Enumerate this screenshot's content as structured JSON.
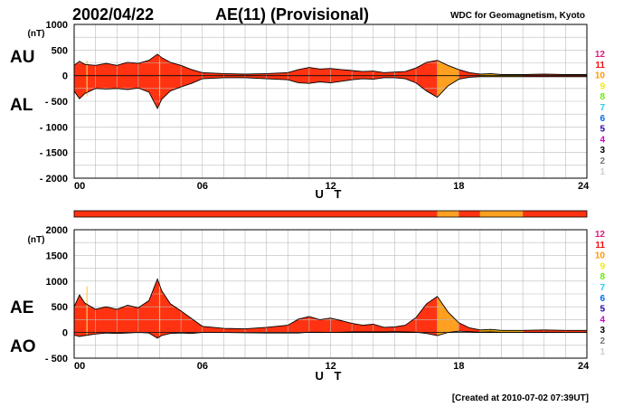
{
  "header": {
    "date": "2002/04/22",
    "title": "AE(11) (Provisional)",
    "source": "WDC for Geomagnetism, Kyoto"
  },
  "footer": {
    "created": "[Created at 2010-07-02 07:39UT]"
  },
  "colors": {
    "fill_main": "#ff3311",
    "fill_orange": "#ffa020",
    "fill_gold": "#e0a000",
    "grid": "#bbbbbb",
    "outline": "#000000"
  },
  "legend": {
    "levels": [
      {
        "label": "12",
        "color": "#e8177d"
      },
      {
        "label": "11",
        "color": "#ee1111"
      },
      {
        "label": "10",
        "color": "#ff9900"
      },
      {
        "label": "9",
        "color": "#eeee00"
      },
      {
        "label": "8",
        "color": "#66ee00"
      },
      {
        "label": "7",
        "color": "#22ccee"
      },
      {
        "label": "6",
        "color": "#0066ee"
      },
      {
        "label": "5",
        "color": "#2200aa"
      },
      {
        "label": "4",
        "color": "#cc00cc"
      },
      {
        "label": "3",
        "color": "#000000"
      },
      {
        "label": "2",
        "color": "#777777"
      },
      {
        "label": "1",
        "color": "#cccccc"
      }
    ]
  },
  "chart_data": [
    {
      "type": "area",
      "title": "",
      "xlabel": "U T",
      "ylabel_unit": "(nT)",
      "upper_series": "AU",
      "lower_series": "AL",
      "xlim": [
        0,
        24
      ],
      "ylim": [
        -2000,
        1000
      ],
      "x_ticks": [
        "00",
        "06",
        "12",
        "18",
        "24"
      ],
      "y_ticks": [
        "1000",
        "500",
        "0",
        "- 500",
        "- 1000",
        "- 1500",
        "- 2000"
      ],
      "x": [
        0,
        0.25,
        0.5,
        1,
        1.5,
        2,
        2.5,
        3,
        3.5,
        3.9,
        4.1,
        4.5,
        5,
        5.5,
        6,
        7,
        8,
        9,
        10,
        10.5,
        11,
        11.5,
        12,
        12.5,
        13,
        13.5,
        14,
        14.5,
        15,
        15.5,
        16,
        16.5,
        17,
        17.5,
        18,
        18.5,
        19,
        19.5,
        20,
        21,
        22,
        23,
        24
      ],
      "AU": [
        200,
        280,
        220,
        200,
        240,
        200,
        260,
        240,
        300,
        420,
        350,
        260,
        200,
        120,
        60,
        40,
        30,
        40,
        60,
        120,
        160,
        130,
        140,
        120,
        100,
        80,
        90,
        60,
        70,
        80,
        150,
        260,
        300,
        200,
        120,
        60,
        30,
        40,
        20,
        20,
        30,
        20,
        20
      ],
      "AL": [
        -300,
        -450,
        -350,
        -250,
        -260,
        -250,
        -270,
        -240,
        -320,
        -640,
        -460,
        -300,
        -220,
        -150,
        -60,
        -40,
        -40,
        -60,
        -80,
        -140,
        -150,
        -120,
        -140,
        -110,
        -80,
        -60,
        -70,
        -40,
        -40,
        -60,
        -140,
        -300,
        -420,
        -200,
        -70,
        -30,
        -20,
        -20,
        -20,
        -20,
        -20,
        -20,
        -20
      ],
      "activity_bands": [
        {
          "from": 0,
          "to": 17,
          "level": "11"
        },
        {
          "from": 17,
          "to": 18,
          "level": "10"
        },
        {
          "from": 18,
          "to": 19,
          "level": "11"
        },
        {
          "from": 19,
          "to": 21,
          "level": "10"
        },
        {
          "from": 21,
          "to": 24,
          "level": "11"
        }
      ]
    },
    {
      "type": "area",
      "title": "",
      "xlabel": "U T",
      "ylabel_unit": "(nT)",
      "upper_series": "AE",
      "lower_series": "AO",
      "xlim": [
        0,
        24
      ],
      "ylim": [
        -500,
        2000
      ],
      "x_ticks": [
        "00",
        "06",
        "12",
        "18",
        "24"
      ],
      "y_ticks": [
        "2000",
        "1500",
        "1000",
        "500",
        "0",
        "- 500"
      ],
      "x": [
        0,
        0.25,
        0.5,
        1,
        1.5,
        2,
        2.5,
        3,
        3.5,
        3.9,
        4.1,
        4.5,
        5,
        5.5,
        6,
        7,
        8,
        9,
        10,
        10.5,
        11,
        11.5,
        12,
        12.5,
        13,
        13.5,
        14,
        14.5,
        15,
        15.5,
        16,
        16.5,
        17,
        17.5,
        18,
        18.5,
        19,
        19.5,
        20,
        21,
        22,
        23,
        24
      ],
      "AE": [
        500,
        730,
        570,
        450,
        500,
        450,
        530,
        480,
        620,
        1040,
        810,
        560,
        420,
        270,
        120,
        80,
        70,
        100,
        140,
        260,
        310,
        250,
        280,
        230,
        180,
        140,
        160,
        100,
        110,
        140,
        290,
        560,
        700,
        400,
        190,
        90,
        50,
        60,
        40,
        40,
        50,
        40,
        40
      ],
      "AO": [
        -50,
        -80,
        -60,
        -30,
        -10,
        -20,
        -10,
        0,
        -10,
        -110,
        -60,
        -20,
        -10,
        -20,
        0,
        0,
        -5,
        -10,
        -10,
        -10,
        5,
        5,
        0,
        5,
        10,
        10,
        10,
        10,
        15,
        10,
        5,
        -20,
        -60,
        0,
        25,
        15,
        5,
        10,
        0,
        0,
        5,
        0,
        0
      ]
    }
  ]
}
